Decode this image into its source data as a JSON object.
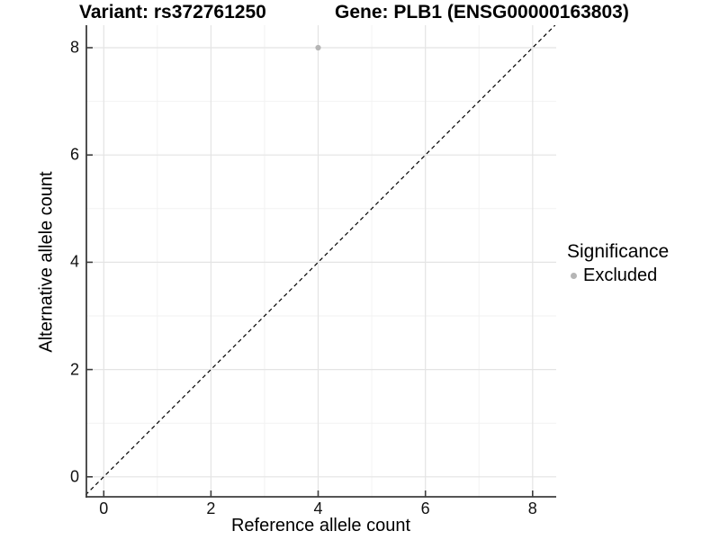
{
  "header": {
    "variant_title": "Variant: rs372761250",
    "gene_title": "Gene: PLB1 (ENSG00000163803)"
  },
  "axes": {
    "x_label": "Reference allele count",
    "y_label": "Alternative allele count"
  },
  "legend": {
    "title": "Significance",
    "items": [
      {
        "label": "Excluded",
        "color": "#b5b5b5"
      }
    ]
  },
  "colors": {
    "background": "#ffffff",
    "point": "#b5b5b5",
    "grid_major": "#e4e4e4",
    "grid_minor": "#f2f2f2",
    "axis_line": "#3d3d3d",
    "reference_line": "#000000",
    "tick_label": "#111111"
  },
  "chart_data": {
    "type": "scatter",
    "title_left": "Variant: rs372761250",
    "title_right": "Gene: PLB1 (ENSG00000163803)",
    "xlabel": "Reference allele count",
    "ylabel": "Alternative allele count",
    "xlim": [
      -0.34,
      8.44
    ],
    "ylim": [
      -0.39,
      8.42
    ],
    "x_ticks": [
      0,
      2,
      4,
      6,
      8
    ],
    "y_ticks": [
      0,
      2,
      4,
      6,
      8
    ],
    "x_minor_gridlines": [
      1,
      3,
      5,
      7
    ],
    "y_minor_gridlines": [
      1,
      3,
      5,
      7
    ],
    "grid": "major+minor",
    "legend_title": "Significance",
    "legend_position": "right-middle",
    "series": [
      {
        "name": "Excluded",
        "color": "#b5b5b5",
        "points": [
          {
            "x": 4,
            "y": 8
          }
        ]
      }
    ],
    "reference_line": {
      "type": "identity y=x",
      "style": "dashed",
      "color": "#000000"
    }
  }
}
